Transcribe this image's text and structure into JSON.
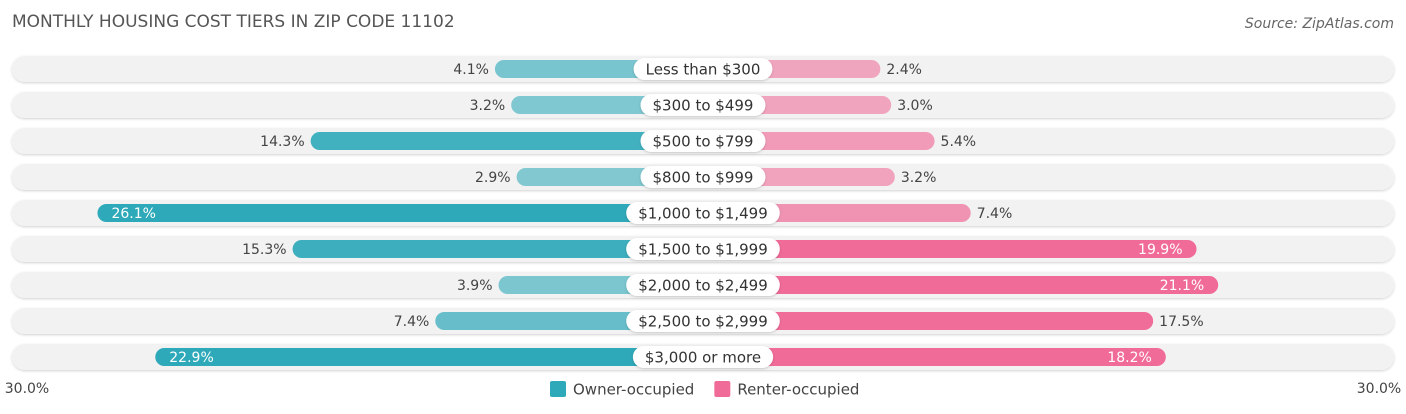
{
  "chart_data": {
    "type": "diverging-bar",
    "title": "MONTHLY HOUSING COST TIERS IN ZIP CODE 11102",
    "source": "Source: ZipAtlas.com",
    "categories": [
      "Less than $300",
      "$300 to $499",
      "$500 to $799",
      "$800 to $999",
      "$1,000 to $1,499",
      "$1,500 to $1,999",
      "$2,000 to $2,499",
      "$2,500 to $2,999",
      "$3,000 or more"
    ],
    "series": [
      {
        "name": "Owner-occupied",
        "color": "#2ea9b9",
        "side": "left",
        "values": [
          4.1,
          3.2,
          14.3,
          2.9,
          26.1,
          15.3,
          3.9,
          7.4,
          22.9
        ],
        "value_labels": [
          "4.1%",
          "3.2%",
          "14.3%",
          "2.9%",
          "26.1%",
          "15.3%",
          "3.9%",
          "7.4%",
          "22.9%"
        ]
      },
      {
        "name": "Renter-occupied",
        "color": "#f06b98",
        "side": "right",
        "values": [
          2.4,
          3.0,
          5.4,
          3.2,
          7.4,
          19.9,
          21.1,
          17.5,
          18.2
        ],
        "value_labels": [
          "2.4%",
          "3.0%",
          "5.4%",
          "3.2%",
          "7.4%",
          "19.9%",
          "21.1%",
          "17.5%",
          "18.2%"
        ]
      }
    ],
    "xlim": [
      0,
      30
    ],
    "xticks": [
      {
        "value": 30,
        "label": "30.0%"
      }
    ]
  }
}
